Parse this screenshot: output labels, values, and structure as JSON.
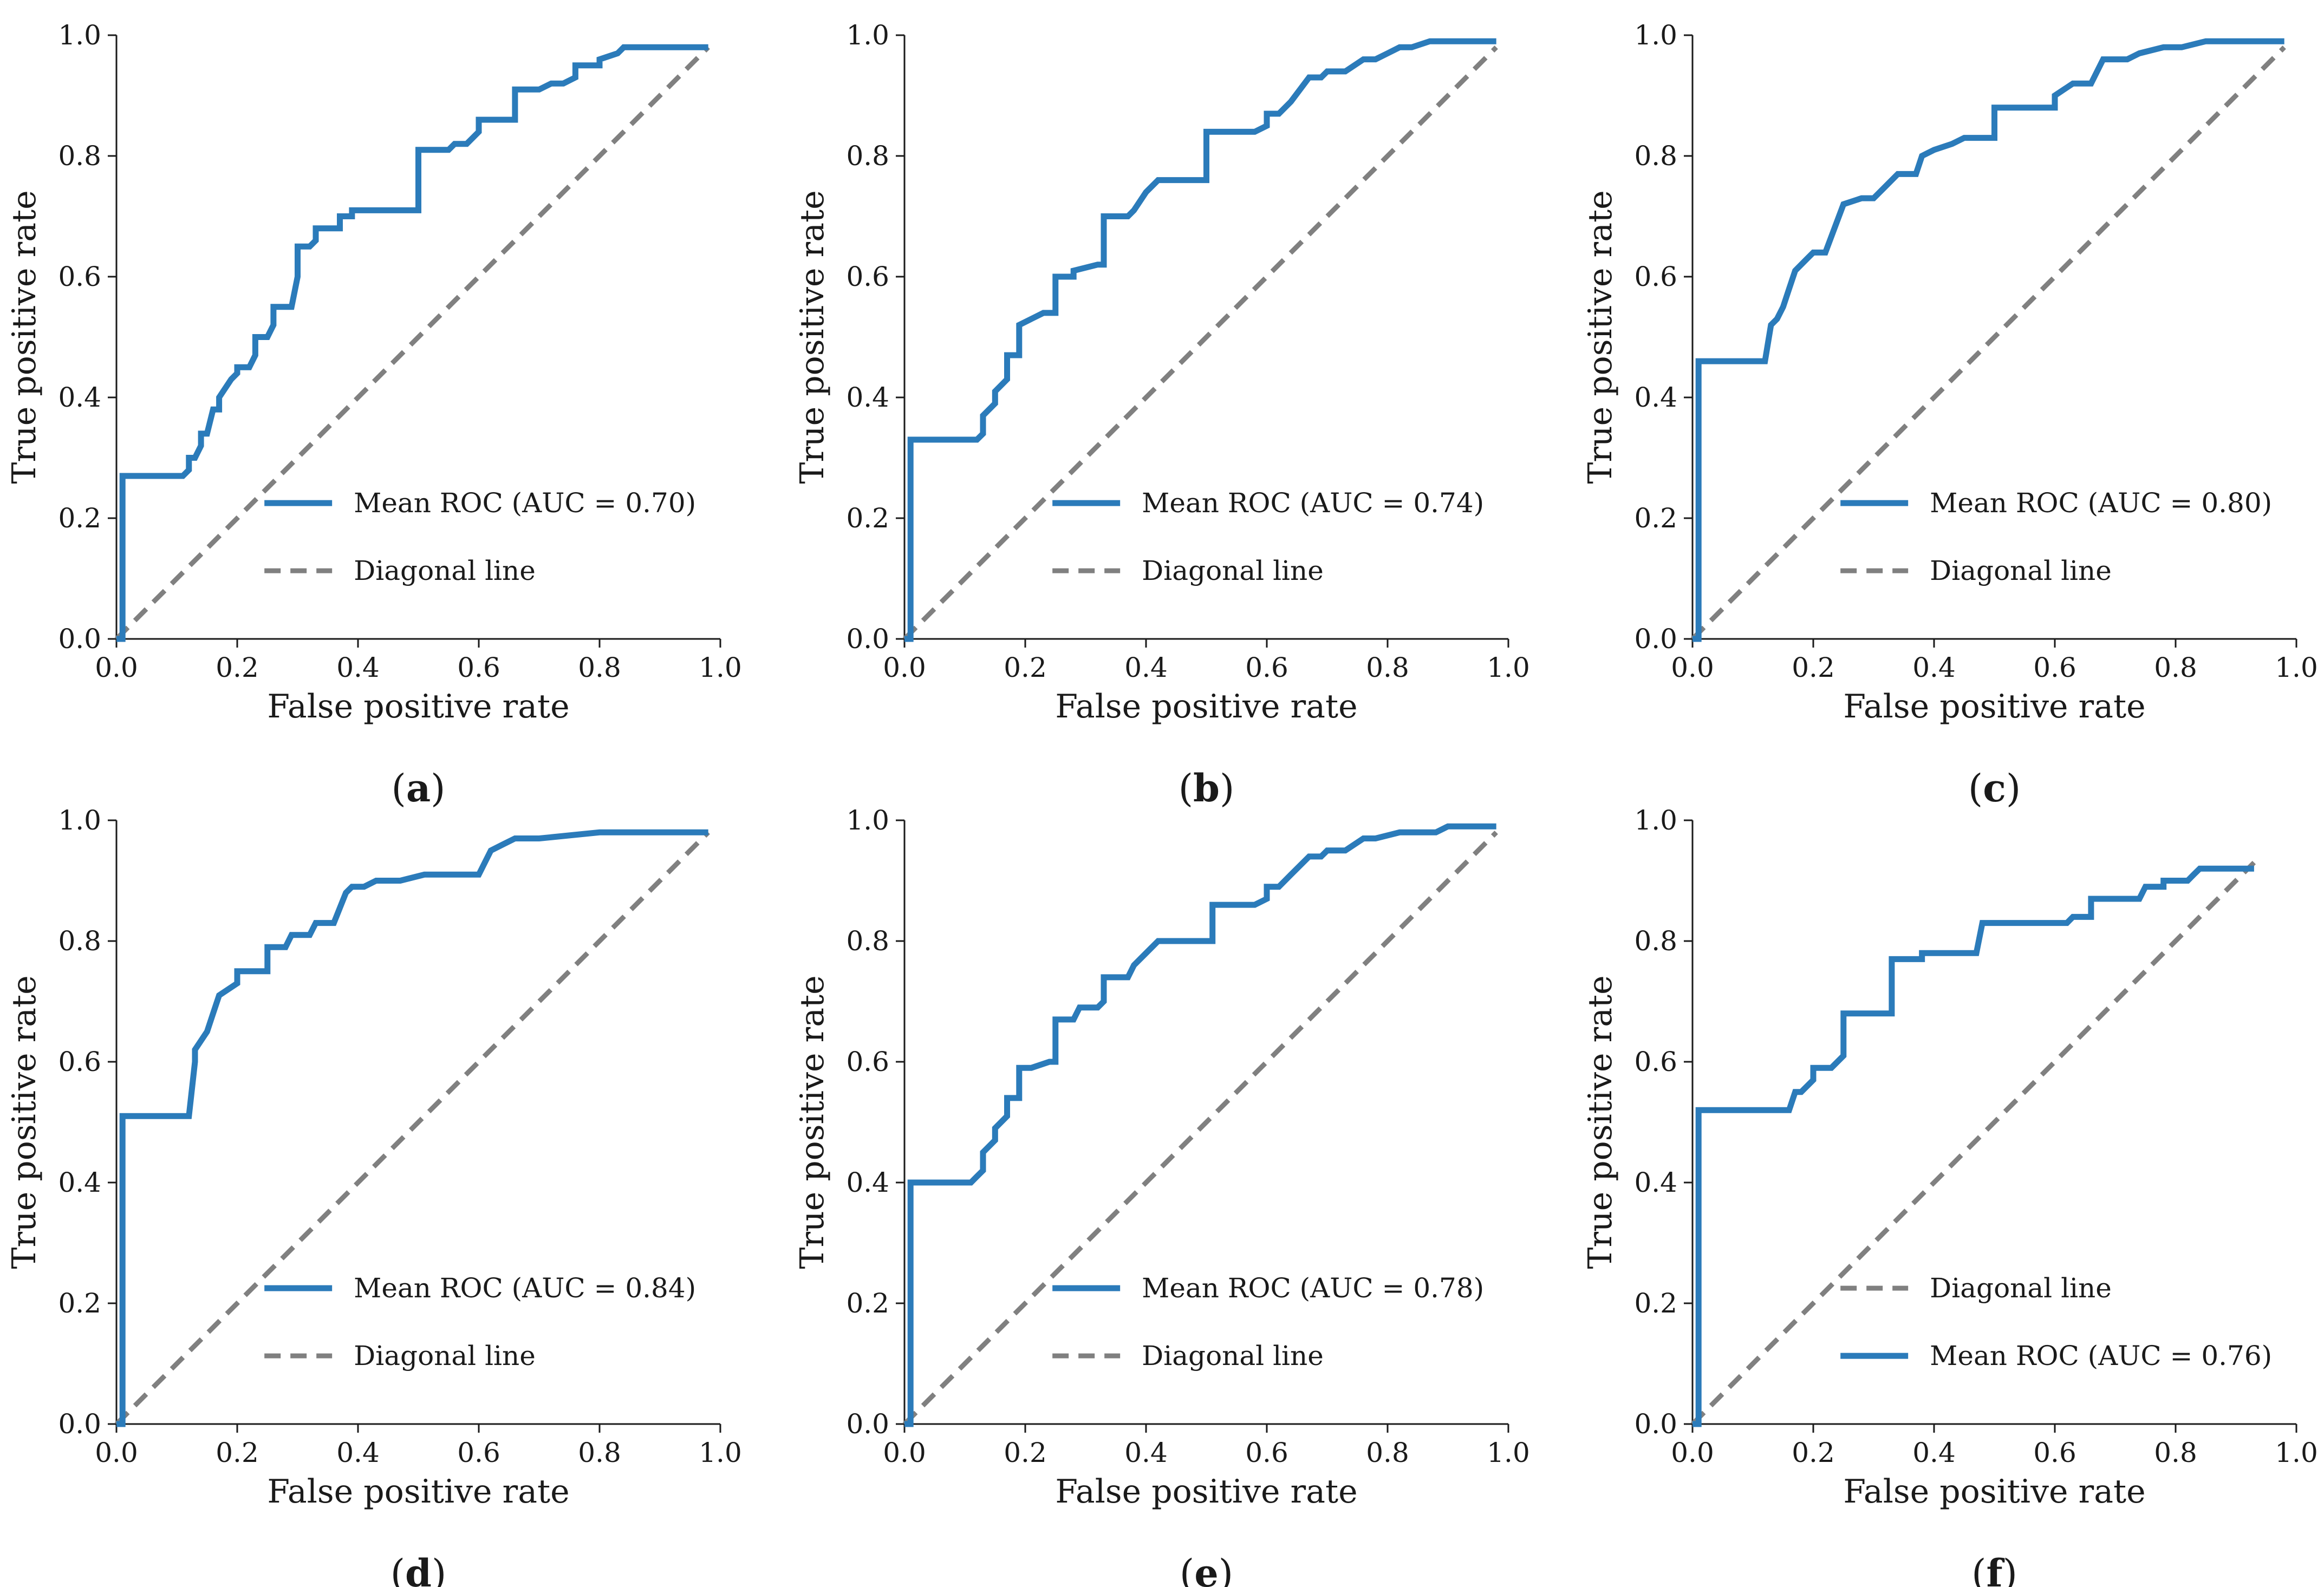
{
  "figure": {
    "colors": {
      "roc": "#2b7bba",
      "diagonal": "#808080",
      "axis": "#1a1a1a"
    }
  },
  "chart_data": [
    {
      "id": "a",
      "type": "line",
      "caption": "a",
      "xlabel": "False positive rate",
      "ylabel": "True positive rate",
      "xlim": [
        0,
        1
      ],
      "ylim": [
        0,
        1
      ],
      "xticks": [
        "0.0",
        "0.2",
        "0.4",
        "0.6",
        "0.8",
        "1.0"
      ],
      "yticks": [
        "0.0",
        "0.2",
        "0.4",
        "0.6",
        "0.8",
        "1.0"
      ],
      "legend_position": "lower-right",
      "legend": [
        "Mean ROC (AUC = 0.70)",
        "Diagonal line"
      ],
      "series": [
        {
          "name": "Mean ROC (AUC = 0.70)",
          "style": "solid",
          "x": [
            0.0,
            0.01,
            0.01,
            0.11,
            0.12,
            0.12,
            0.13,
            0.14,
            0.14,
            0.15,
            0.16,
            0.17,
            0.17,
            0.19,
            0.2,
            0.2,
            0.22,
            0.23,
            0.23,
            0.25,
            0.26,
            0.26,
            0.29,
            0.3,
            0.3,
            0.32,
            0.33,
            0.33,
            0.37,
            0.37,
            0.39,
            0.39,
            0.42,
            0.42,
            0.5,
            0.5,
            0.55,
            0.56,
            0.58,
            0.6,
            0.6,
            0.62,
            0.62,
            0.66,
            0.66,
            0.7,
            0.72,
            0.74,
            0.76,
            0.76,
            0.8,
            0.8,
            0.83,
            0.84,
            0.86,
            0.98
          ],
          "y": [
            0.0,
            0.0,
            0.27,
            0.27,
            0.28,
            0.3,
            0.3,
            0.32,
            0.34,
            0.34,
            0.38,
            0.38,
            0.4,
            0.43,
            0.44,
            0.45,
            0.45,
            0.47,
            0.5,
            0.5,
            0.52,
            0.55,
            0.55,
            0.6,
            0.65,
            0.65,
            0.66,
            0.68,
            0.68,
            0.7,
            0.7,
            0.71,
            0.71,
            0.71,
            0.71,
            0.81,
            0.81,
            0.82,
            0.82,
            0.84,
            0.86,
            0.86,
            0.86,
            0.86,
            0.91,
            0.91,
            0.92,
            0.92,
            0.93,
            0.95,
            0.95,
            0.96,
            0.97,
            0.98,
            0.98,
            0.98
          ]
        },
        {
          "name": "Diagonal line",
          "style": "dashed",
          "x": [
            0,
            0.98
          ],
          "y": [
            0,
            0.98
          ]
        }
      ]
    },
    {
      "id": "b",
      "type": "line",
      "caption": "b",
      "xlabel": "False positive rate",
      "ylabel": "True positive rate",
      "xlim": [
        0,
        1
      ],
      "ylim": [
        0,
        1
      ],
      "xticks": [
        "0.0",
        "0.2",
        "0.4",
        "0.6",
        "0.8",
        "1.0"
      ],
      "yticks": [
        "0.0",
        "0.2",
        "0.4",
        "0.6",
        "0.8",
        "1.0"
      ],
      "legend_position": "lower-right",
      "legend": [
        "Mean ROC (AUC = 0.74)",
        "Diagonal line"
      ],
      "series": [
        {
          "name": "Mean ROC (AUC = 0.74)",
          "style": "solid",
          "x": [
            0.0,
            0.01,
            0.01,
            0.11,
            0.12,
            0.13,
            0.13,
            0.15,
            0.15,
            0.17,
            0.17,
            0.19,
            0.19,
            0.21,
            0.21,
            0.23,
            0.25,
            0.25,
            0.28,
            0.28,
            0.32,
            0.33,
            0.33,
            0.37,
            0.38,
            0.4,
            0.42,
            0.46,
            0.5,
            0.5,
            0.57,
            0.58,
            0.6,
            0.6,
            0.62,
            0.64,
            0.64,
            0.67,
            0.69,
            0.7,
            0.73,
            0.76,
            0.78,
            0.8,
            0.82,
            0.84,
            0.87,
            0.9,
            0.98
          ],
          "y": [
            0.0,
            0.0,
            0.33,
            0.33,
            0.33,
            0.34,
            0.37,
            0.39,
            0.41,
            0.43,
            0.47,
            0.47,
            0.52,
            0.53,
            0.53,
            0.54,
            0.54,
            0.6,
            0.6,
            0.61,
            0.62,
            0.62,
            0.7,
            0.7,
            0.71,
            0.74,
            0.76,
            0.76,
            0.76,
            0.84,
            0.84,
            0.84,
            0.85,
            0.87,
            0.87,
            0.89,
            0.89,
            0.93,
            0.93,
            0.94,
            0.94,
            0.96,
            0.96,
            0.97,
            0.98,
            0.98,
            0.99,
            0.99,
            0.99
          ]
        },
        {
          "name": "Diagonal line",
          "style": "dashed",
          "x": [
            0,
            0.98
          ],
          "y": [
            0,
            0.98
          ]
        }
      ]
    },
    {
      "id": "c",
      "type": "line",
      "caption": "c",
      "xlabel": "False positive rate",
      "ylabel": "True positive rate",
      "xlim": [
        0,
        1
      ],
      "ylim": [
        0,
        1
      ],
      "xticks": [
        "0.0",
        "0.2",
        "0.4",
        "0.6",
        "0.8",
        "1.0"
      ],
      "yticks": [
        "0.0",
        "0.2",
        "0.4",
        "0.6",
        "0.8",
        "1.0"
      ],
      "legend_position": "lower-right",
      "legend": [
        "Mean ROC (AUC = 0.80)",
        "Diagonal line"
      ],
      "series": [
        {
          "name": "Mean ROC (AUC = 0.80)",
          "style": "solid",
          "x": [
            0.0,
            0.01,
            0.01,
            0.12,
            0.13,
            0.14,
            0.15,
            0.16,
            0.17,
            0.17,
            0.19,
            0.2,
            0.22,
            0.25,
            0.25,
            0.28,
            0.3,
            0.32,
            0.34,
            0.37,
            0.38,
            0.4,
            0.43,
            0.45,
            0.48,
            0.5,
            0.5,
            0.58,
            0.6,
            0.6,
            0.63,
            0.66,
            0.68,
            0.7,
            0.72,
            0.74,
            0.78,
            0.81,
            0.85,
            0.9,
            0.98
          ],
          "y": [
            0.0,
            0.0,
            0.46,
            0.46,
            0.52,
            0.53,
            0.55,
            0.58,
            0.61,
            0.61,
            0.63,
            0.64,
            0.64,
            0.72,
            0.72,
            0.73,
            0.73,
            0.75,
            0.77,
            0.77,
            0.8,
            0.81,
            0.82,
            0.83,
            0.83,
            0.83,
            0.88,
            0.88,
            0.88,
            0.9,
            0.92,
            0.92,
            0.96,
            0.96,
            0.96,
            0.97,
            0.98,
            0.98,
            0.99,
            0.99,
            0.99
          ]
        },
        {
          "name": "Diagonal line",
          "style": "dashed",
          "x": [
            0,
            0.98
          ],
          "y": [
            0,
            0.98
          ]
        }
      ]
    },
    {
      "id": "d",
      "type": "line",
      "caption": "d",
      "xlabel": "False positive rate",
      "ylabel": "True positive rate",
      "xlim": [
        0,
        1
      ],
      "ylim": [
        0,
        1
      ],
      "xticks": [
        "0.0",
        "0.2",
        "0.4",
        "0.6",
        "0.8",
        "1.0"
      ],
      "yticks": [
        "0.0",
        "0.2",
        "0.4",
        "0.6",
        "0.8",
        "1.0"
      ],
      "legend_position": "lower-right",
      "legend": [
        "Mean ROC (AUC = 0.84)",
        "Diagonal line"
      ],
      "series": [
        {
          "name": "Mean ROC (AUC = 0.84)",
          "style": "solid",
          "x": [
            0.0,
            0.01,
            0.01,
            0.12,
            0.13,
            0.13,
            0.15,
            0.16,
            0.17,
            0.17,
            0.2,
            0.2,
            0.25,
            0.25,
            0.28,
            0.29,
            0.32,
            0.33,
            0.36,
            0.38,
            0.39,
            0.41,
            0.43,
            0.47,
            0.51,
            0.6,
            0.62,
            0.64,
            0.66,
            0.7,
            0.8,
            0.98
          ],
          "y": [
            0.0,
            0.0,
            0.51,
            0.51,
            0.6,
            0.62,
            0.65,
            0.68,
            0.71,
            0.71,
            0.73,
            0.75,
            0.75,
            0.79,
            0.79,
            0.81,
            0.81,
            0.83,
            0.83,
            0.88,
            0.89,
            0.89,
            0.9,
            0.9,
            0.91,
            0.91,
            0.95,
            0.96,
            0.97,
            0.97,
            0.98,
            0.98
          ]
        },
        {
          "name": "Diagonal line",
          "style": "dashed",
          "x": [
            0,
            0.98
          ],
          "y": [
            0,
            0.98
          ]
        }
      ]
    },
    {
      "id": "e",
      "type": "line",
      "caption": "e",
      "xlabel": "False positive rate",
      "ylabel": "True positive rate",
      "xlim": [
        0,
        1
      ],
      "ylim": [
        0,
        1
      ],
      "xticks": [
        "0.0",
        "0.2",
        "0.4",
        "0.6",
        "0.8",
        "1.0"
      ],
      "yticks": [
        "0.0",
        "0.2",
        "0.4",
        "0.6",
        "0.8",
        "1.0"
      ],
      "legend_position": "lower-right",
      "legend": [
        "Mean ROC (AUC = 0.78)",
        "Diagonal line"
      ],
      "series": [
        {
          "name": "Mean ROC (AUC = 0.78)",
          "style": "solid",
          "x": [
            0.0,
            0.01,
            0.01,
            0.11,
            0.12,
            0.13,
            0.13,
            0.15,
            0.15,
            0.17,
            0.17,
            0.19,
            0.19,
            0.21,
            0.21,
            0.24,
            0.25,
            0.25,
            0.28,
            0.29,
            0.32,
            0.33,
            0.33,
            0.37,
            0.38,
            0.4,
            0.42,
            0.46,
            0.51,
            0.51,
            0.57,
            0.58,
            0.6,
            0.6,
            0.62,
            0.64,
            0.64,
            0.67,
            0.69,
            0.7,
            0.73,
            0.76,
            0.78,
            0.82,
            0.85,
            0.88,
            0.9,
            0.98
          ],
          "y": [
            0.0,
            0.0,
            0.4,
            0.4,
            0.41,
            0.42,
            0.45,
            0.47,
            0.49,
            0.51,
            0.54,
            0.54,
            0.59,
            0.59,
            0.59,
            0.6,
            0.6,
            0.67,
            0.67,
            0.69,
            0.69,
            0.7,
            0.74,
            0.74,
            0.76,
            0.78,
            0.8,
            0.8,
            0.8,
            0.86,
            0.86,
            0.86,
            0.87,
            0.89,
            0.89,
            0.91,
            0.91,
            0.94,
            0.94,
            0.95,
            0.95,
            0.97,
            0.97,
            0.98,
            0.98,
            0.98,
            0.99,
            0.99
          ]
        },
        {
          "name": "Diagonal line",
          "style": "dashed",
          "x": [
            0,
            0.98
          ],
          "y": [
            0,
            0.98
          ]
        }
      ]
    },
    {
      "id": "f",
      "type": "line",
      "caption": "f",
      "xlabel": "False positive rate",
      "ylabel": "True positive rate",
      "xlim": [
        0,
        1
      ],
      "ylim": [
        0,
        1
      ],
      "xticks": [
        "0.0",
        "0.2",
        "0.4",
        "0.6",
        "0.8",
        "1.0"
      ],
      "yticks": [
        "0.0",
        "0.2",
        "0.4",
        "0.6",
        "0.8",
        "1.0"
      ],
      "legend_position": "lower-right",
      "legend": [
        "Diagonal line",
        "Mean ROC (AUC = 0.76)"
      ],
      "series": [
        {
          "name": "Mean ROC (AUC = 0.76)",
          "style": "solid",
          "x": [
            0.0,
            0.01,
            0.01,
            0.16,
            0.17,
            0.18,
            0.2,
            0.2,
            0.23,
            0.25,
            0.25,
            0.29,
            0.33,
            0.33,
            0.38,
            0.38,
            0.47,
            0.48,
            0.58,
            0.59,
            0.62,
            0.63,
            0.66,
            0.66,
            0.74,
            0.75,
            0.78,
            0.78,
            0.82,
            0.83,
            0.84,
            0.93
          ],
          "y": [
            0.0,
            0.0,
            0.52,
            0.52,
            0.55,
            0.55,
            0.57,
            0.59,
            0.59,
            0.61,
            0.68,
            0.68,
            0.68,
            0.77,
            0.77,
            0.78,
            0.78,
            0.83,
            0.83,
            0.83,
            0.83,
            0.84,
            0.84,
            0.87,
            0.87,
            0.89,
            0.89,
            0.9,
            0.9,
            0.91,
            0.92,
            0.92
          ]
        },
        {
          "name": "Diagonal line",
          "style": "dashed",
          "x": [
            0,
            0.93
          ],
          "y": [
            0,
            0.93
          ]
        }
      ]
    }
  ]
}
